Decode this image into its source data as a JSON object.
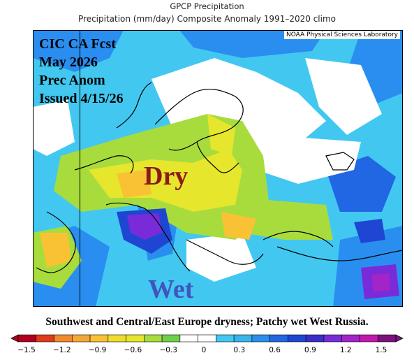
{
  "header": {
    "title": "GPCP Precipitation",
    "subtitle": "Precipitation (mm/day) Composite Anomaly 1991–2020 climo"
  },
  "map": {
    "credit": "NOAA Physical Sciences Laboratory",
    "forecast_lines": [
      "CIC CA Fcst",
      "May 2026",
      "Prec Anom",
      "Issued 4/15/26"
    ],
    "dry_label": "Dry",
    "wet_label": "Wet",
    "colors": {
      "strong_dry": "#e03a1a",
      "dry": "#f28a2c",
      "mod_dry": "#f9c235",
      "slight_dry": "#e6e62c",
      "near_dry": "#a8dc3c",
      "neutral": "#ffffff",
      "slight_wet": "#42c8f0",
      "wet": "#2a8ef0",
      "mod_wet": "#1e46d2",
      "strong_wet": "#7a2bd9",
      "very_wet": "#a324c7",
      "dry_text": "#8b1a1a",
      "wet_text": "#4055c0"
    }
  },
  "caption": "Southwest and Central/East Europe dryness; Patchy wet West Russia.",
  "colorbar": {
    "tick_labels": [
      "−1.5",
      "−1.2",
      "−0.9",
      "−0.6",
      "−0.3",
      "0",
      "0.3",
      "0.6",
      "0.9",
      "1.2",
      "1.5"
    ],
    "colors": [
      "#b0001e",
      "#e03a1a",
      "#f28a2c",
      "#f5a836",
      "#f9c235",
      "#f1dc2e",
      "#e6e62c",
      "#a8dc3c",
      "#6ed04a",
      "#ffffff",
      "#ffffff",
      "#42c8f0",
      "#36b6ec",
      "#2a8ef0",
      "#2166e2",
      "#1e46d2",
      "#3a2fc9",
      "#7a2bd9",
      "#a324c7",
      "#c417b0",
      "#7c117e"
    ]
  }
}
